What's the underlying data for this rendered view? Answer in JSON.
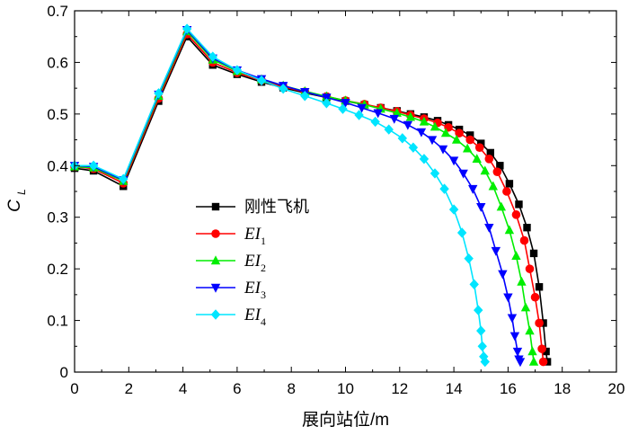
{
  "chart_data": {
    "type": "line",
    "xlabel": "展向站位/m",
    "ylabel": "C",
    "ylabel_sub": "L",
    "xlim": [
      0,
      20
    ],
    "ylim": [
      0,
      0.7
    ],
    "xticks": [
      "0",
      "2",
      "4",
      "6",
      "8",
      "10",
      "12",
      "14",
      "16",
      "18",
      "20"
    ],
    "yticks": [
      "0",
      "0.1",
      "0.2",
      "0.3",
      "0.4",
      "0.5",
      "0.6",
      "0.7"
    ],
    "grid": false,
    "legend_position": "center-left",
    "series": [
      {
        "name": "刚性飞机",
        "legend_main": "刚性飞机",
        "legend_sub": "",
        "color": "#000000",
        "marker": "square",
        "x": [
          0,
          0.7,
          1.8,
          3.1,
          4.15,
          5.1,
          6.0,
          6.9,
          7.7,
          8.5,
          9.3,
          10.0,
          10.7,
          11.3,
          11.9,
          12.4,
          12.9,
          13.4,
          13.8,
          14.2,
          14.6,
          15.0,
          15.35,
          15.7,
          16.05,
          16.4,
          16.7,
          16.95,
          17.15,
          17.3,
          17.4,
          17.45
        ],
        "y": [
          0.395,
          0.39,
          0.36,
          0.525,
          0.65,
          0.595,
          0.577,
          0.562,
          0.551,
          0.541,
          0.532,
          0.525,
          0.518,
          0.512,
          0.506,
          0.5,
          0.494,
          0.487,
          0.479,
          0.47,
          0.459,
          0.443,
          0.425,
          0.4,
          0.365,
          0.325,
          0.28,
          0.23,
          0.165,
          0.095,
          0.04,
          0.02
        ]
      },
      {
        "name": "EI1",
        "legend_main": "EI",
        "legend_sub": "1",
        "color": "#ff0000",
        "marker": "circle",
        "x": [
          0,
          0.7,
          1.8,
          3.1,
          4.15,
          5.1,
          6.0,
          6.9,
          7.7,
          8.5,
          9.3,
          10.0,
          10.7,
          11.3,
          11.9,
          12.4,
          12.9,
          13.4,
          13.8,
          14.2,
          14.6,
          14.95,
          15.3,
          15.6,
          15.95,
          16.3,
          16.6,
          16.8,
          17.0,
          17.15,
          17.25,
          17.3
        ],
        "y": [
          0.398,
          0.394,
          0.366,
          0.53,
          0.655,
          0.6,
          0.58,
          0.565,
          0.553,
          0.543,
          0.534,
          0.526,
          0.519,
          0.512,
          0.505,
          0.498,
          0.491,
          0.483,
          0.474,
          0.463,
          0.45,
          0.435,
          0.413,
          0.388,
          0.35,
          0.305,
          0.255,
          0.2,
          0.145,
          0.095,
          0.045,
          0.02
        ]
      },
      {
        "name": "EI2",
        "legend_main": "EI",
        "legend_sub": "2",
        "color": "#00ee00",
        "marker": "triangle-up",
        "x": [
          0,
          0.7,
          1.8,
          3.1,
          4.15,
          5.1,
          6.0,
          6.9,
          7.7,
          8.5,
          9.3,
          10.0,
          10.7,
          11.3,
          11.9,
          12.4,
          12.9,
          13.3,
          13.7,
          14.1,
          14.5,
          14.85,
          15.15,
          15.45,
          15.75,
          16.05,
          16.3,
          16.5,
          16.65,
          16.8,
          16.9,
          16.95
        ],
        "y": [
          0.398,
          0.396,
          0.37,
          0.535,
          0.66,
          0.605,
          0.583,
          0.567,
          0.555,
          0.544,
          0.534,
          0.526,
          0.518,
          0.51,
          0.502,
          0.494,
          0.485,
          0.475,
          0.463,
          0.45,
          0.433,
          0.413,
          0.39,
          0.36,
          0.32,
          0.275,
          0.225,
          0.175,
          0.125,
          0.08,
          0.04,
          0.02
        ]
      },
      {
        "name": "EI3",
        "legend_main": "EI",
        "legend_sub": "3",
        "color": "#0000ff",
        "marker": "triangle-down",
        "x": [
          0,
          0.7,
          1.8,
          3.1,
          4.15,
          5.1,
          6.0,
          6.9,
          7.7,
          8.5,
          9.3,
          10.0,
          10.6,
          11.2,
          11.8,
          12.3,
          12.8,
          13.2,
          13.6,
          14.0,
          14.35,
          14.7,
          15.0,
          15.3,
          15.55,
          15.8,
          16.0,
          16.15,
          16.25,
          16.35,
          16.4,
          16.45
        ],
        "y": [
          0.4,
          0.398,
          0.372,
          0.538,
          0.663,
          0.608,
          0.585,
          0.568,
          0.555,
          0.543,
          0.532,
          0.522,
          0.512,
          0.502,
          0.491,
          0.479,
          0.465,
          0.45,
          0.432,
          0.41,
          0.385,
          0.355,
          0.32,
          0.28,
          0.235,
          0.19,
          0.145,
          0.105,
          0.07,
          0.04,
          0.025,
          0.02
        ]
      },
      {
        "name": "EI4",
        "legend_main": "EI",
        "legend_sub": "4",
        "color": "#00e5ff",
        "marker": "diamond",
        "x": [
          0,
          0.7,
          1.8,
          3.1,
          4.15,
          5.1,
          6.0,
          6.9,
          7.7,
          8.5,
          9.3,
          9.9,
          10.5,
          11.1,
          11.6,
          12.1,
          12.5,
          12.9,
          13.3,
          13.65,
          14.0,
          14.3,
          14.55,
          14.75,
          14.9,
          15.0,
          15.05,
          15.1,
          15.15
        ],
        "y": [
          0.4,
          0.4,
          0.374,
          0.54,
          0.665,
          0.611,
          0.585,
          0.565,
          0.549,
          0.535,
          0.521,
          0.51,
          0.498,
          0.485,
          0.47,
          0.453,
          0.435,
          0.413,
          0.385,
          0.355,
          0.315,
          0.27,
          0.22,
          0.17,
          0.12,
          0.08,
          0.05,
          0.03,
          0.02
        ]
      }
    ]
  }
}
